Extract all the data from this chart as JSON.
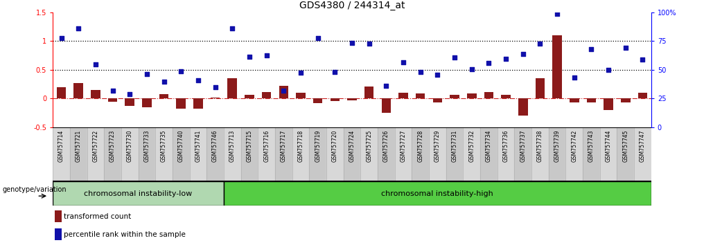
{
  "title": "GDS4380 / 244314_at",
  "categories": [
    "GSM757714",
    "GSM757721",
    "GSM757722",
    "GSM757723",
    "GSM757730",
    "GSM757733",
    "GSM757735",
    "GSM757740",
    "GSM757741",
    "GSM757746",
    "GSM757713",
    "GSM757715",
    "GSM757716",
    "GSM757717",
    "GSM757718",
    "GSM757719",
    "GSM757720",
    "GSM757724",
    "GSM757725",
    "GSM757726",
    "GSM757727",
    "GSM757728",
    "GSM757729",
    "GSM757731",
    "GSM757732",
    "GSM757734",
    "GSM757736",
    "GSM757737",
    "GSM757738",
    "GSM757739",
    "GSM757742",
    "GSM757743",
    "GSM757744",
    "GSM757745",
    "GSM757747"
  ],
  "red_bars": [
    0.2,
    0.27,
    0.15,
    -0.05,
    -0.13,
    -0.15,
    0.08,
    -0.17,
    -0.17,
    0.02,
    0.36,
    0.06,
    0.12,
    0.22,
    0.1,
    -0.08,
    -0.04,
    -0.03,
    0.21,
    -0.25,
    0.1,
    0.09,
    -0.07,
    0.06,
    0.09,
    0.11,
    0.07,
    -0.3,
    0.35,
    1.1,
    -0.07,
    -0.07,
    -0.2,
    -0.07,
    0.1
  ],
  "blue_squares": [
    1.05,
    1.22,
    0.59,
    0.14,
    0.08,
    0.43,
    0.3,
    0.47,
    0.32,
    0.2,
    1.22,
    0.73,
    0.75,
    0.14,
    0.45,
    1.05,
    0.46,
    0.97,
    0.95,
    0.22,
    0.63,
    0.46,
    0.41,
    0.72,
    0.51,
    0.62,
    0.69,
    0.77,
    0.96,
    1.47,
    0.37,
    0.86,
    0.5,
    0.88,
    0.68
  ],
  "group1_count": 10,
  "group1_label": "chromosomal instability-low",
  "group2_label": "chromosomal instability-high",
  "group1_color": "#b0d8b0",
  "group2_color": "#55cc44",
  "bar_color": "#8B1A1A",
  "square_color": "#1010AA",
  "ylim_left": [
    -0.5,
    1.5
  ],
  "ylim_right": [
    0,
    100
  ],
  "yticks_left": [
    -0.5,
    0.0,
    0.5,
    1.0,
    1.5
  ],
  "yticks_right": [
    0,
    25,
    50,
    75,
    100
  ],
  "hlines": [
    1.0,
    0.5
  ],
  "legend_items": [
    "transformed count",
    "percentile rank within the sample"
  ],
  "annotation_label": "genotype/variation",
  "title_fontsize": 10,
  "axis_fontsize": 7,
  "xtick_fontsize": 5.5
}
